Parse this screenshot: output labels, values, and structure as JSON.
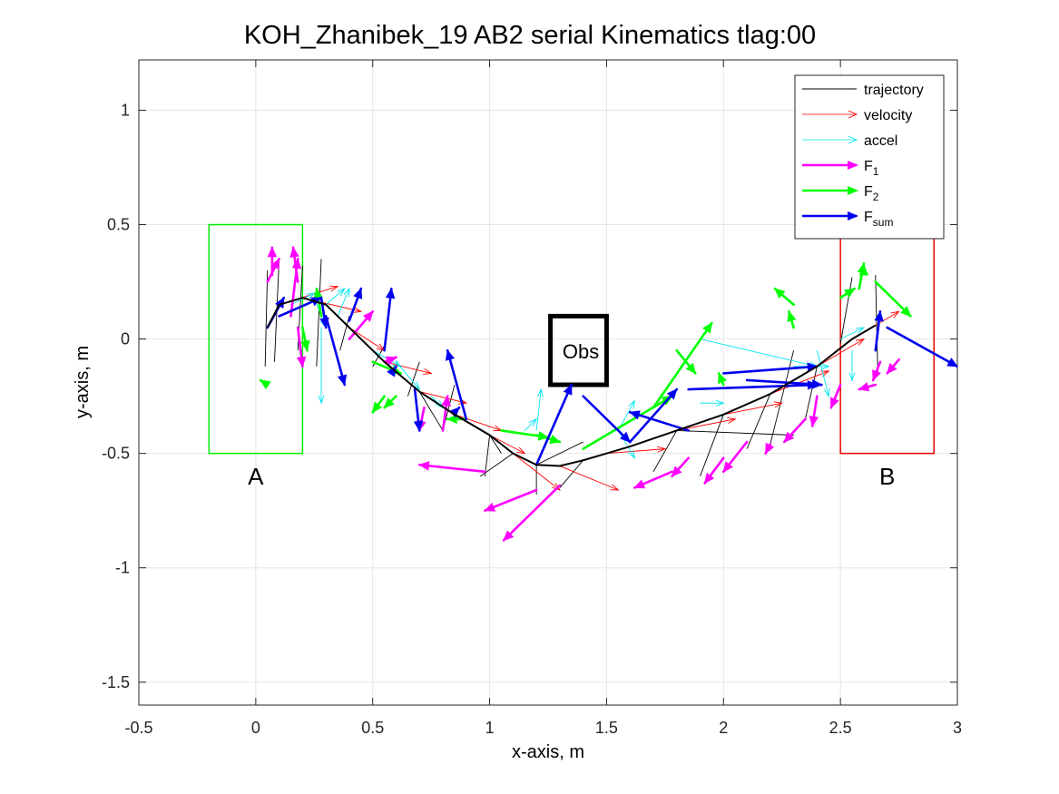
{
  "chart_data": {
    "type": "line",
    "title": "KOH_Zhanibek_19    AB2    serial    Kinematics tlag:00",
    "xlabel": "x-axis, m",
    "ylabel": "y-axis, m",
    "xlim": [
      -0.5,
      3.0
    ],
    "ylim": [
      -1.6,
      1.22
    ],
    "xticks": [
      -0.5,
      0,
      0.5,
      1,
      1.5,
      2,
      2.5,
      3
    ],
    "xtick_labels": [
      "-0.5",
      "0",
      "0.5",
      "1",
      "1.5",
      "2",
      "2.5",
      "3"
    ],
    "yticks": [
      -1.5,
      -1,
      -0.5,
      0,
      0.5,
      1
    ],
    "ytick_labels": [
      "-1.5",
      "-1",
      "-0.5",
      "0",
      "0.5",
      "1"
    ],
    "grid": true,
    "legend_position": "top-right",
    "legend": [
      {
        "label": "trajectory",
        "sub": "",
        "color": "#000000",
        "width": 1,
        "style": "line"
      },
      {
        "label": "velocity",
        "sub": "",
        "color": "#ff0000",
        "width": 0.8,
        "style": "arrow"
      },
      {
        "label": "accel",
        "sub": "",
        "color": "#00e5ee",
        "width": 0.8,
        "style": "arrow"
      },
      {
        "label": "F",
        "sub": "1",
        "color": "#ff00ff",
        "width": 2.5,
        "style": "arrow"
      },
      {
        "label": "F",
        "sub": "2",
        "color": "#00ff00",
        "width": 2.5,
        "style": "arrow"
      },
      {
        "label": "F",
        "sub": "sum",
        "color": "#0000ee",
        "width": 2.5,
        "style": "arrow"
      }
    ],
    "regions": [
      {
        "label": "A",
        "x0": -0.2,
        "x1": 0.2,
        "y0": -0.5,
        "y1": 0.5,
        "color": "#00ee00",
        "width": 1.5,
        "label_x": 0.0,
        "label_y": -0.6
      },
      {
        "label": "B",
        "x0": 2.5,
        "x1": 2.9,
        "y0": -0.5,
        "y1": 0.5,
        "color": "#ee0000",
        "width": 1.5,
        "label_x": 2.7,
        "label_y": -0.6
      },
      {
        "label": "Obs",
        "x0": 1.26,
        "x1": 1.5,
        "y0": -0.2,
        "y1": 0.1,
        "color": "#000000",
        "width": 5,
        "label_x": 1.39,
        "label_y": -0.05
      }
    ],
    "series": [
      {
        "name": "trajectory",
        "color": "#000000",
        "x": [
          0.05,
          0.1,
          0.2,
          0.3,
          0.4,
          0.55,
          0.7,
          0.85,
          1.0,
          1.1,
          1.2,
          1.3,
          1.4,
          1.5,
          1.6,
          1.8,
          2.0,
          2.2,
          2.4,
          2.55,
          2.65
        ],
        "y": [
          0.05,
          0.15,
          0.18,
          0.15,
          0.05,
          -0.1,
          -0.23,
          -0.33,
          -0.42,
          -0.5,
          -0.55,
          -0.555,
          -0.53,
          -0.5,
          -0.47,
          -0.4,
          -0.33,
          -0.24,
          -0.12,
          0.0,
          0.06
        ]
      },
      {
        "name": "trajectory-links",
        "color": "#000000",
        "segments": [
          [
            0.05,
            0.3,
            0.04,
            -0.12
          ],
          [
            0.1,
            0.35,
            0.08,
            -0.1
          ],
          [
            0.2,
            0.32,
            0.18,
            -0.05
          ],
          [
            0.28,
            0.35,
            0.26,
            -0.12
          ],
          [
            0.4,
            0.1,
            0.36,
            -0.05
          ],
          [
            0.55,
            -0.03,
            0.5,
            -0.12
          ],
          [
            0.7,
            -0.1,
            0.65,
            -0.25
          ],
          [
            0.85,
            -0.2,
            0.8,
            -0.4
          ],
          [
            1.0,
            -0.42,
            0.98,
            -0.6
          ],
          [
            1.1,
            -0.5,
            0.96,
            -0.6
          ],
          [
            1.2,
            -0.55,
            1.2,
            -0.68
          ],
          [
            1.4,
            -0.53,
            1.3,
            -0.65
          ],
          [
            1.8,
            -0.4,
            1.7,
            -0.58
          ],
          [
            2.0,
            -0.33,
            1.9,
            -0.6
          ],
          [
            2.2,
            -0.24,
            2.1,
            -0.48
          ],
          [
            2.3,
            -0.05,
            2.2,
            -0.46
          ],
          [
            2.4,
            -0.12,
            2.35,
            -0.35
          ],
          [
            2.55,
            0.27,
            2.5,
            -0.02
          ],
          [
            2.65,
            0.28,
            2.66,
            -0.16
          ],
          [
            1.0,
            -0.42,
            1.05,
            -0.5
          ],
          [
            1.2,
            -0.55,
            1.4,
            -0.45
          ],
          [
            0.7,
            -0.23,
            0.8,
            -0.4
          ],
          [
            1.8,
            -0.4,
            2.3,
            -0.42
          ]
        ]
      },
      {
        "name": "velocity",
        "color": "#ff0000",
        "arrows": [
          [
            0.1,
            0.15,
            0.35,
            0.23
          ],
          [
            0.2,
            0.18,
            0.45,
            0.12
          ],
          [
            0.4,
            0.05,
            0.55,
            -0.05
          ],
          [
            0.55,
            -0.1,
            0.75,
            -0.15
          ],
          [
            0.7,
            -0.23,
            0.9,
            -0.28
          ],
          [
            0.85,
            -0.33,
            1.05,
            -0.4
          ],
          [
            1.0,
            -0.42,
            1.15,
            -0.5
          ],
          [
            1.1,
            -0.5,
            1.3,
            -0.66
          ],
          [
            1.3,
            -0.555,
            1.55,
            -0.66
          ],
          [
            1.5,
            -0.5,
            1.75,
            -0.48
          ],
          [
            1.8,
            -0.4,
            2.05,
            -0.35
          ],
          [
            2.0,
            -0.33,
            2.25,
            -0.28
          ],
          [
            2.2,
            -0.24,
            2.45,
            -0.14
          ],
          [
            2.4,
            -0.12,
            2.6,
            0.0
          ],
          [
            2.55,
            0.0,
            2.75,
            0.12
          ]
        ]
      },
      {
        "name": "accel",
        "color": "#00e5ee",
        "arrows": [
          [
            0.15,
            0.15,
            0.25,
            0.2
          ],
          [
            0.25,
            0.18,
            0.3,
            0.05
          ],
          [
            0.3,
            0.15,
            0.38,
            0.22
          ],
          [
            0.28,
            0.05,
            0.28,
            -0.28
          ],
          [
            0.35,
            0.1,
            0.4,
            0.22
          ],
          [
            0.5,
            -0.05,
            0.62,
            -0.12
          ],
          [
            0.6,
            -0.1,
            0.7,
            -0.22
          ],
          [
            0.75,
            -0.25,
            0.8,
            -0.3
          ],
          [
            1.15,
            -0.4,
            1.2,
            -0.35
          ],
          [
            1.2,
            -0.4,
            1.22,
            -0.22
          ],
          [
            1.55,
            -0.4,
            1.62,
            -0.27
          ],
          [
            1.55,
            -0.4,
            1.62,
            -0.52
          ],
          [
            1.9,
            -0.28,
            2.0,
            -0.28
          ],
          [
            1.9,
            0.0,
            2.4,
            -0.12
          ],
          [
            2.3,
            -0.12,
            2.45,
            -0.12
          ],
          [
            2.4,
            -0.05,
            2.45,
            -0.25
          ],
          [
            2.5,
            0.0,
            2.6,
            0.05
          ],
          [
            2.55,
            -0.05,
            2.55,
            -0.18
          ]
        ]
      },
      {
        "name": "F1",
        "color": "#ff00ff",
        "arrows": [
          [
            0.07,
            0.28,
            0.07,
            0.4
          ],
          [
            0.05,
            0.25,
            0.1,
            0.35
          ],
          [
            0.18,
            0.25,
            0.16,
            0.4
          ],
          [
            0.15,
            0.1,
            0.18,
            0.35
          ],
          [
            0.18,
            0.05,
            0.2,
            -0.12
          ],
          [
            0.4,
            0.0,
            0.5,
            0.12
          ],
          [
            0.55,
            -0.1,
            0.6,
            -0.08
          ],
          [
            0.72,
            -0.3,
            0.7,
            -0.4
          ],
          [
            0.8,
            -0.4,
            0.82,
            -0.25
          ],
          [
            0.98,
            -0.58,
            0.7,
            -0.55
          ],
          [
            1.2,
            -0.66,
            0.98,
            -0.75
          ],
          [
            1.3,
            -0.64,
            1.06,
            -0.88
          ],
          [
            1.78,
            -0.58,
            1.62,
            -0.65
          ],
          [
            1.85,
            -0.52,
            1.78,
            -0.6
          ],
          [
            2.0,
            -0.52,
            1.92,
            -0.63
          ],
          [
            2.1,
            -0.45,
            2.0,
            -0.58
          ],
          [
            2.2,
            -0.46,
            2.18,
            -0.5
          ],
          [
            2.35,
            -0.35,
            2.26,
            -0.45
          ],
          [
            2.4,
            -0.25,
            2.38,
            -0.38
          ],
          [
            2.5,
            -0.2,
            2.46,
            -0.3
          ],
          [
            2.65,
            -0.2,
            2.58,
            -0.22
          ],
          [
            2.75,
            -0.09,
            2.7,
            -0.15
          ],
          [
            2.67,
            -0.1,
            2.64,
            -0.18
          ]
        ]
      },
      {
        "name": "F2",
        "color": "#00ff00",
        "arrows": [
          [
            0.05,
            -0.2,
            0.02,
            -0.18
          ],
          [
            0.28,
            0.1,
            0.26,
            0.22
          ],
          [
            0.2,
            0.05,
            0.22,
            -0.05
          ],
          [
            0.6,
            -0.25,
            0.55,
            -0.3
          ],
          [
            0.5,
            -0.1,
            0.62,
            -0.15
          ],
          [
            0.55,
            -0.25,
            0.5,
            -0.32
          ],
          [
            0.9,
            -0.35,
            0.82,
            -0.35
          ],
          [
            1.05,
            -0.4,
            1.25,
            -0.43
          ],
          [
            1.2,
            -0.42,
            1.3,
            -0.45
          ],
          [
            1.4,
            -0.48,
            1.78,
            -0.25
          ],
          [
            1.7,
            -0.3,
            1.95,
            0.07
          ],
          [
            1.8,
            -0.05,
            1.88,
            -0.15
          ],
          [
            2.0,
            -0.2,
            1.98,
            -0.15
          ],
          [
            2.3,
            0.15,
            2.22,
            0.22
          ],
          [
            2.3,
            0.05,
            2.28,
            0.12
          ],
          [
            2.5,
            0.18,
            2.56,
            0.22
          ],
          [
            2.58,
            0.22,
            2.6,
            0.33
          ],
          [
            2.65,
            0.25,
            2.8,
            0.1
          ],
          [
            2.6,
            0.3,
            2.6,
            0.32
          ]
        ]
      },
      {
        "name": "Fsum",
        "color": "#0000ee",
        "arrows": [
          [
            0.05,
            0.05,
            0.12,
            0.18
          ],
          [
            0.1,
            0.1,
            0.28,
            0.18
          ],
          [
            0.28,
            0.18,
            0.3,
            0.05
          ],
          [
            0.3,
            0.1,
            0.38,
            -0.2
          ],
          [
            0.4,
            0.08,
            0.45,
            0.22
          ],
          [
            0.55,
            -0.05,
            0.58,
            0.22
          ],
          [
            0.58,
            -0.15,
            0.6,
            -0.12
          ],
          [
            0.68,
            -0.22,
            0.7,
            -0.4
          ],
          [
            0.9,
            -0.35,
            0.82,
            -0.05
          ],
          [
            0.85,
            -0.32,
            0.87,
            -0.3
          ],
          [
            1.2,
            -0.55,
            1.35,
            -0.2
          ],
          [
            1.4,
            -0.25,
            1.6,
            -0.45
          ],
          [
            1.6,
            -0.45,
            1.8,
            -0.22
          ],
          [
            1.85,
            -0.4,
            1.6,
            -0.32
          ],
          [
            2.0,
            -0.15,
            2.4,
            -0.12
          ],
          [
            1.85,
            -0.22,
            2.4,
            -0.2
          ],
          [
            2.1,
            -0.18,
            2.42,
            -0.2
          ],
          [
            2.7,
            0.05,
            3.0,
            -0.12
          ],
          [
            2.65,
            -0.05,
            2.67,
            0.12
          ]
        ]
      }
    ]
  }
}
